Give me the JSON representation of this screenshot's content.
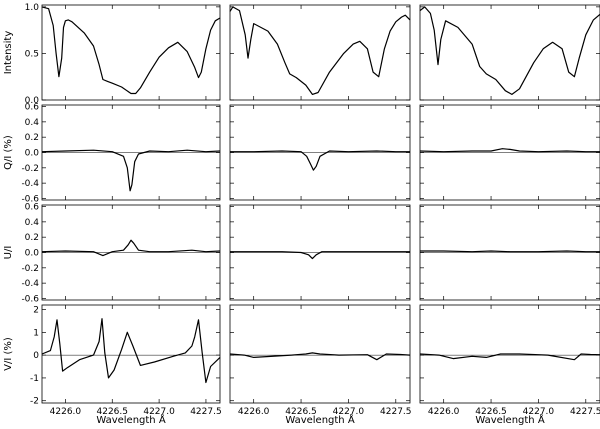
{
  "chart_data": {
    "type": "line",
    "layout": "4 rows x 3 columns of panels sharing the x axis",
    "xlabel": "Wavelength  Å",
    "xlim": [
      4225.75,
      4227.65
    ],
    "x_ticks": [
      4226.0,
      4226.5,
      4227.0,
      4227.5
    ],
    "x_tick_labels": [
      "4226.0",
      "4226.5",
      "4227.0",
      "4227.5"
    ],
    "rows": [
      {
        "id": "intensity",
        "ylabel": "Intensity",
        "ylim": [
          0.0,
          1.02
        ],
        "y_ticks": [
          0.0,
          0.5,
          1.0
        ],
        "y_tick_labels": [
          "0.0",
          "0.5",
          "1.0"
        ],
        "zero_line": false,
        "columns": [
          {
            "x": [
              4225.75,
              4225.82,
              4225.87,
              4225.9,
              4225.93,
              4225.96,
              4225.98,
              4226.0,
              4226.03,
              4226.07,
              4226.2,
              4226.3,
              4226.36,
              4226.4,
              4226.45,
              4226.5,
              4226.6,
              4226.7,
              4226.75,
              4226.8,
              4226.9,
              4227.0,
              4227.1,
              4227.2,
              4227.3,
              4227.38,
              4227.42,
              4227.45,
              4227.5,
              4227.55,
              4227.6,
              4227.65
            ],
            "y": [
              1.0,
              0.98,
              0.8,
              0.5,
              0.25,
              0.45,
              0.78,
              0.85,
              0.86,
              0.84,
              0.72,
              0.58,
              0.38,
              0.22,
              0.2,
              0.18,
              0.14,
              0.07,
              0.07,
              0.13,
              0.3,
              0.46,
              0.56,
              0.62,
              0.52,
              0.35,
              0.24,
              0.3,
              0.55,
              0.75,
              0.85,
              0.88
            ]
          },
          {
            "x": [
              4225.75,
              4225.78,
              4225.85,
              4225.91,
              4225.94,
              4225.97,
              4226.0,
              4226.15,
              4226.25,
              4226.33,
              4226.38,
              4226.45,
              4226.55,
              4226.62,
              4226.68,
              4226.8,
              4226.95,
              4227.05,
              4227.12,
              4227.2,
              4227.26,
              4227.32,
              4227.38,
              4227.44,
              4227.5,
              4227.56,
              4227.6,
              4227.65
            ],
            "y": [
              0.95,
              1.0,
              0.96,
              0.7,
              0.45,
              0.65,
              0.82,
              0.74,
              0.6,
              0.4,
              0.28,
              0.24,
              0.16,
              0.06,
              0.08,
              0.3,
              0.5,
              0.6,
              0.63,
              0.55,
              0.3,
              0.25,
              0.55,
              0.74,
              0.84,
              0.89,
              0.91,
              0.86
            ]
          },
          {
            "x": [
              4225.75,
              4225.8,
              4225.86,
              4225.9,
              4225.94,
              4225.97,
              4226.02,
              4226.15,
              4226.3,
              4226.38,
              4226.45,
              4226.55,
              4226.65,
              4226.72,
              4226.8,
              4226.95,
              4227.05,
              4227.15,
              4227.25,
              4227.32,
              4227.38,
              4227.43,
              4227.5,
              4227.58,
              4227.65
            ],
            "y": [
              0.96,
              1.0,
              0.93,
              0.75,
              0.38,
              0.65,
              0.85,
              0.78,
              0.6,
              0.36,
              0.28,
              0.22,
              0.1,
              0.06,
              0.12,
              0.4,
              0.55,
              0.62,
              0.55,
              0.3,
              0.25,
              0.45,
              0.7,
              0.86,
              0.92
            ]
          }
        ]
      },
      {
        "id": "q_over_i",
        "ylabel": "Q/I (%)",
        "ylim": [
          -0.62,
          0.62
        ],
        "y_ticks": [
          -0.6,
          -0.4,
          -0.2,
          0.0,
          0.2,
          0.4,
          0.6
        ],
        "y_tick_labels": [
          "-0.6",
          "-0.4",
          "-0.2",
          "0.0",
          "0.2",
          "0.4",
          "0.6"
        ],
        "zero_line": true,
        "columns": [
          {
            "x": [
              4225.75,
              4226.0,
              4226.3,
              4226.5,
              4226.62,
              4226.66,
              4226.69,
              4226.71,
              4226.74,
              4226.78,
              4226.9,
              4227.1,
              4227.3,
              4227.5,
              4227.65
            ],
            "y": [
              0.01,
              0.02,
              0.03,
              0.01,
              -0.05,
              -0.2,
              -0.5,
              -0.42,
              -0.12,
              -0.02,
              0.02,
              0.01,
              0.03,
              0.01,
              0.02
            ]
          },
          {
            "x": [
              4225.75,
              4226.0,
              4226.3,
              4226.5,
              4226.56,
              4226.6,
              4226.63,
              4226.66,
              4226.7,
              4226.8,
              4227.0,
              4227.3,
              4227.5,
              4227.65
            ],
            "y": [
              0.01,
              0.01,
              0.02,
              0.01,
              -0.05,
              -0.15,
              -0.23,
              -0.18,
              -0.05,
              0.02,
              0.01,
              0.02,
              0.01,
              0.01
            ]
          },
          {
            "x": [
              4225.75,
              4226.0,
              4226.3,
              4226.5,
              4226.62,
              4226.7,
              4226.8,
              4227.0,
              4227.3,
              4227.5,
              4227.65
            ],
            "y": [
              0.02,
              0.01,
              0.02,
              0.02,
              0.05,
              0.04,
              0.02,
              0.01,
              0.02,
              0.01,
              0.01
            ]
          }
        ]
      },
      {
        "id": "u_over_i",
        "ylabel": "U/I",
        "ylim": [
          -0.62,
          0.62
        ],
        "y_ticks": [
          -0.6,
          -0.4,
          -0.2,
          0.0,
          0.2,
          0.4,
          0.6
        ],
        "y_tick_labels": [
          "-0.6",
          "-0.4",
          "-0.2",
          "0.0",
          "0.2",
          "0.4",
          "0.6"
        ],
        "zero_line": true,
        "columns": [
          {
            "x": [
              4225.75,
              4226.0,
              4226.3,
              4226.4,
              4226.5,
              4226.62,
              4226.67,
              4226.7,
              4226.73,
              4226.78,
              4226.9,
              4227.1,
              4227.35,
              4227.5,
              4227.65
            ],
            "y": [
              0.01,
              0.02,
              0.01,
              -0.04,
              0.01,
              0.03,
              0.1,
              0.16,
              0.12,
              0.03,
              0.01,
              0.01,
              0.03,
              0.01,
              0.02
            ]
          },
          {
            "x": [
              4225.75,
              4226.0,
              4226.3,
              4226.5,
              4226.58,
              4226.62,
              4226.66,
              4226.72,
              4226.9,
              4227.2,
              4227.5,
              4227.65
            ],
            "y": [
              0.01,
              0.01,
              0.01,
              0.0,
              -0.03,
              -0.08,
              -0.03,
              0.01,
              0.01,
              0.01,
              0.01,
              0.01
            ]
          },
          {
            "x": [
              4225.75,
              4226.0,
              4226.3,
              4226.5,
              4226.7,
              4227.0,
              4227.3,
              4227.5,
              4227.65
            ],
            "y": [
              0.02,
              0.02,
              0.01,
              0.02,
              0.01,
              0.01,
              0.02,
              0.01,
              0.01
            ]
          }
        ]
      },
      {
        "id": "v_over_i",
        "ylabel": "V/I (%)",
        "ylim": [
          -2.1,
          2.2
        ],
        "y_ticks": [
          -2,
          -1,
          0,
          1,
          2
        ],
        "y_tick_labels": [
          "-2",
          "-1",
          "0",
          "1",
          "2"
        ],
        "zero_line": true,
        "columns": [
          {
            "x": [
              4225.75,
              4225.84,
              4225.88,
              4225.91,
              4225.94,
              4225.97,
              4226.02,
              4226.15,
              4226.3,
              4226.36,
              4226.39,
              4226.42,
              4226.46,
              4226.52,
              4226.6,
              4226.66,
              4226.72,
              4226.8,
              4226.95,
              4227.15,
              4227.28,
              4227.35,
              4227.38,
              4227.42,
              4227.46,
              4227.5,
              4227.55,
              4227.65
            ],
            "y": [
              0.05,
              0.2,
              0.8,
              1.55,
              0.5,
              -0.7,
              -0.55,
              -0.2,
              0.0,
              0.6,
              1.6,
              0.1,
              -1.0,
              -0.65,
              0.25,
              1.0,
              0.4,
              -0.45,
              -0.3,
              -0.05,
              0.1,
              0.4,
              0.8,
              1.55,
              0.1,
              -1.2,
              -0.5,
              -0.1
            ]
          },
          {
            "x": [
              4225.75,
              4225.9,
              4226.0,
              4226.4,
              4226.55,
              4226.62,
              4226.7,
              4226.9,
              4227.2,
              4227.3,
              4227.4,
              4227.55,
              4227.65
            ],
            "y": [
              0.05,
              0.0,
              -0.1,
              0.0,
              0.05,
              0.1,
              0.05,
              0.0,
              0.02,
              -0.2,
              0.05,
              0.03,
              0.0
            ]
          },
          {
            "x": [
              4225.75,
              4225.95,
              4226.1,
              4226.3,
              4226.45,
              4226.6,
              4226.8,
              4227.1,
              4227.38,
              4227.45,
              4227.55,
              4227.65
            ],
            "y": [
              0.05,
              0.0,
              -0.15,
              -0.05,
              -0.1,
              0.05,
              0.05,
              0.0,
              -0.2,
              0.05,
              0.03,
              0.02
            ]
          }
        ]
      }
    ]
  }
}
